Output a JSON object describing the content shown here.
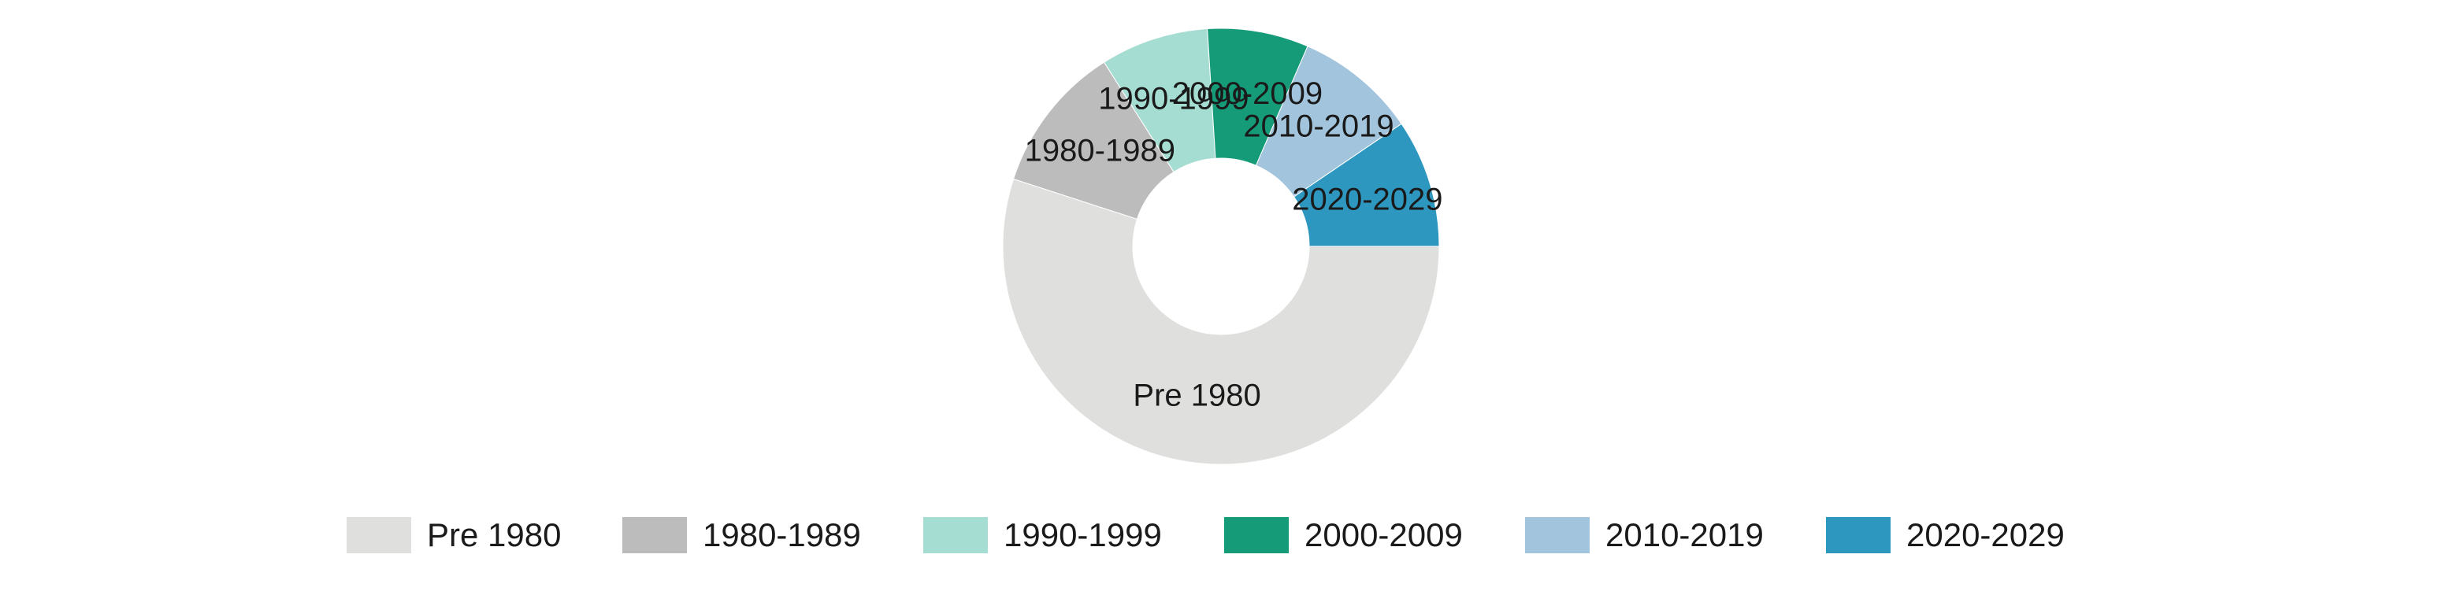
{
  "chart_data": {
    "type": "pie",
    "variant": "donut",
    "categories": [
      "Pre 1980",
      "1980-1989",
      "1990-1999",
      "2000-2009",
      "2010-2019",
      "2020-2029"
    ],
    "values": [
      55,
      11,
      8,
      7.5,
      9,
      9.5
    ],
    "colors": [
      "#dfdfde",
      "#bcbcbc",
      "#a6ddd2",
      "#169b79",
      "#a2c4dc",
      "#2d97c0"
    ],
    "legend_position": "bottom",
    "title": ""
  }
}
